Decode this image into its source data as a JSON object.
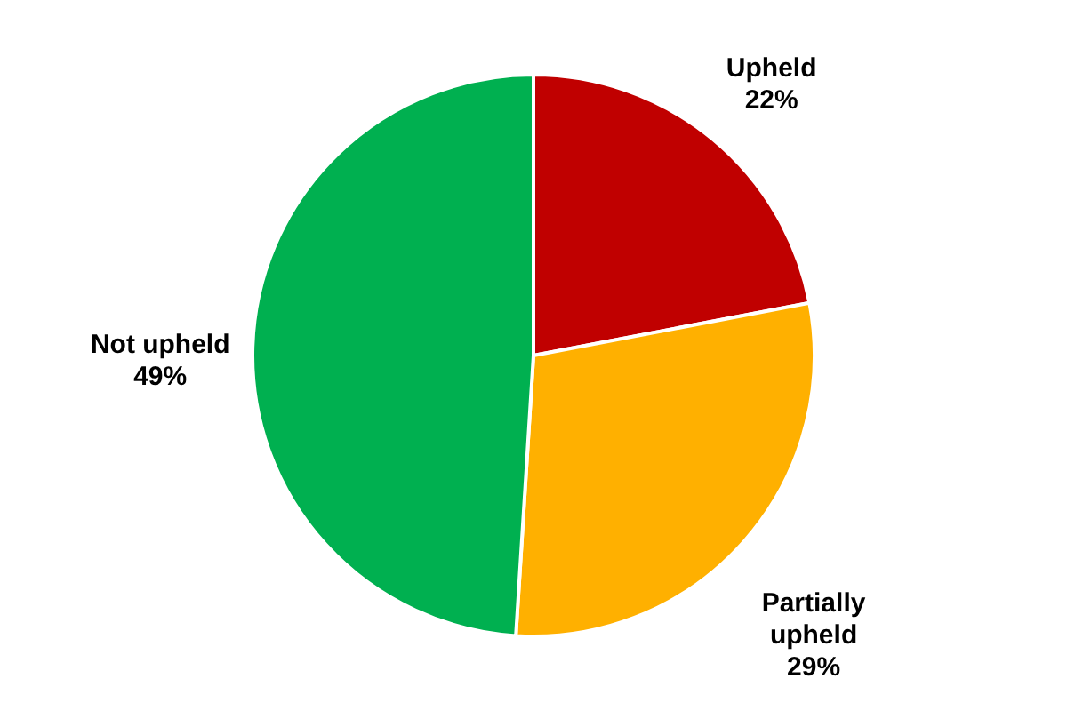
{
  "chart_data": {
    "type": "pie",
    "categories": [
      "Upheld",
      "Partially upheld",
      "Not upheld"
    ],
    "values": [
      22,
      29,
      49
    ],
    "colors": [
      "#c00000",
      "#ffb000",
      "#00b050"
    ],
    "value_labels": [
      "22%",
      "29%",
      "49%"
    ]
  }
}
